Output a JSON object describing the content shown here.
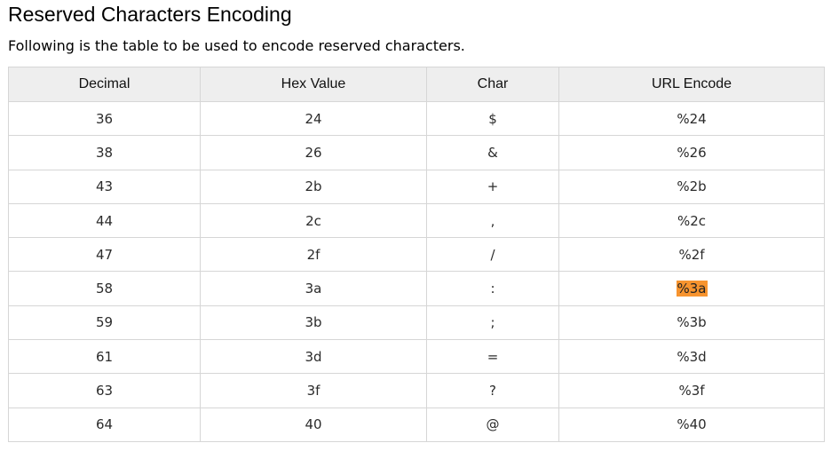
{
  "title": "Reserved Characters Encoding",
  "intro": "Following is the table to be used to encode reserved characters.",
  "table": {
    "headers": [
      "Decimal",
      "Hex Value",
      "Char",
      "URL Encode"
    ],
    "rows": [
      [
        "36",
        "24",
        "$",
        "%24"
      ],
      [
        "38",
        "26",
        "&",
        "%26"
      ],
      [
        "43",
        "2b",
        "+",
        "%2b"
      ],
      [
        "44",
        "2c",
        ",",
        "%2c"
      ],
      [
        "47",
        "2f",
        "/",
        "%2f"
      ],
      [
        "58",
        "3a",
        ":",
        "%3a"
      ],
      [
        "59",
        "3b",
        ";",
        "%3b"
      ],
      [
        "61",
        "3d",
        "=",
        "%3d"
      ],
      [
        "63",
        "3f",
        "?",
        "%3f"
      ],
      [
        "64",
        "40",
        "@",
        "%40"
      ]
    ],
    "highlight_color": "#f7942f"
  }
}
